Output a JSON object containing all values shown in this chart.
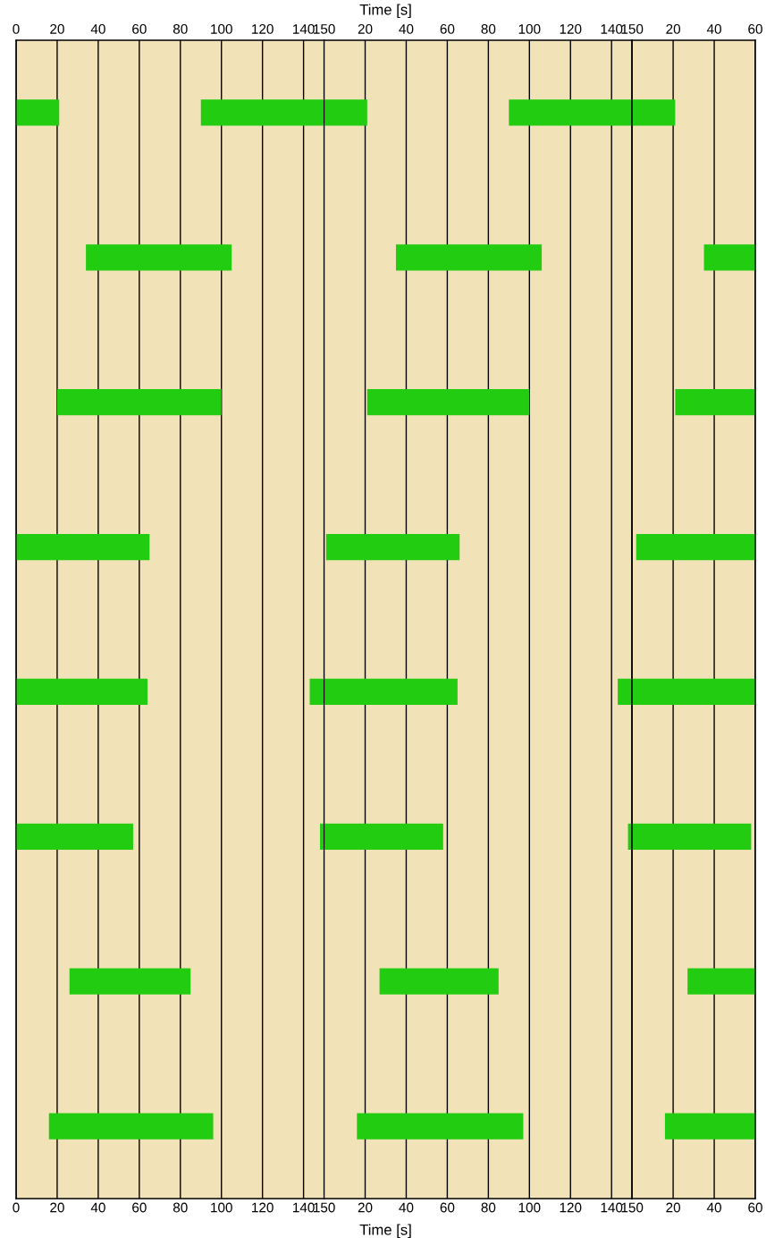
{
  "chart_data": [
    {
      "type": "bar",
      "orientation": "horizontal",
      "tick_labels": "x",
      "grid": "x",
      "categories": [
        null,
        null,
        null,
        null,
        null,
        null,
        null,
        null
      ],
      "series": [
        {
          "color": "#22cc11",
          "base": [
            0,
            34,
            20,
            0,
            0,
            0,
            26,
            16
          ],
          "values": [
            21,
            71,
            80,
            65,
            64,
            57,
            59,
            80
          ]
        },
        {
          "color": "#22cc11",
          "base": [
            90,
            null,
            null,
            null,
            143,
            148,
            null,
            null
          ],
          "values": [
            60,
            null,
            null,
            null,
            7,
            2,
            null,
            null
          ]
        }
      ],
      "xlim": [
        0,
        150
      ],
      "xticks": [
        0,
        20,
        40,
        60,
        80,
        100,
        120,
        140,
        150
      ],
      "x2lim": [
        0,
        150
      ],
      "x2ticks": [
        0,
        20,
        40,
        60,
        80,
        100,
        120,
        140,
        150
      ]
    },
    {
      "type": "bar",
      "orientation": "horizontal",
      "tick_labels": "x",
      "grid": "x",
      "xlabel": "Time [s]",
      "x2label": "Time [s]",
      "categories": [
        null,
        null,
        null,
        null,
        null,
        null,
        null,
        null
      ],
      "series": [
        {
          "color": "#22cc11",
          "base": [
            0,
            35,
            21,
            1,
            0,
            0,
            27,
            16
          ],
          "values": [
            21,
            71,
            79,
            65,
            65,
            58,
            58,
            81
          ]
        },
        {
          "color": "#22cc11",
          "base": [
            90,
            null,
            null,
            null,
            143,
            148,
            null,
            null
          ],
          "values": [
            60,
            null,
            null,
            null,
            7,
            2,
            null,
            null
          ]
        }
      ],
      "xlim": [
        0,
        150
      ],
      "xticks": [
        20,
        40,
        60,
        80,
        100,
        120,
        140,
        150
      ],
      "x2lim": [
        0,
        150
      ],
      "x2ticks": [
        20,
        40,
        60,
        80,
        100,
        120,
        140,
        150
      ]
    },
    {
      "type": "bar",
      "orientation": "horizontal",
      "tick_labels": "x",
      "grid": "x",
      "categories": [
        null,
        null,
        null,
        null,
        null,
        null,
        null,
        null
      ],
      "series": [
        {
          "color": "#22cc11",
          "base": [
            0,
            35,
            21,
            2,
            0,
            0,
            27,
            16
          ],
          "values": [
            21,
            25,
            39,
            58,
            60,
            58,
            33,
            44
          ]
        }
      ],
      "xlim": [
        0,
        60
      ],
      "xticks": [
        20,
        40,
        60
      ],
      "x2lim": [
        0,
        60
      ],
      "x2ticks": [
        20,
        40,
        60
      ]
    }
  ]
}
